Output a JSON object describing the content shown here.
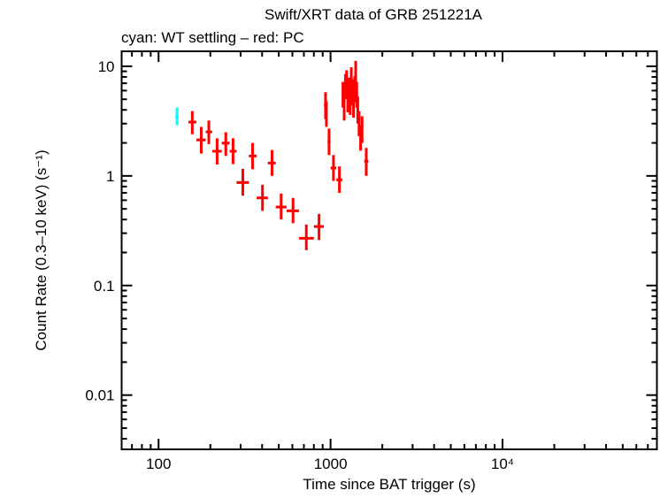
{
  "chart_data": {
    "type": "scatter",
    "title": "Swift/XRT data of GRB 251221A",
    "subtitle": "cyan: WT settling – red: PC",
    "xlabel": "Time since BAT trigger (s)",
    "ylabel": "Count Rate (0.3–10 keV) (s⁻¹)",
    "xscale": "log",
    "yscale": "log",
    "xlim": [
      61,
      79000
    ],
    "ylim": [
      0.0032,
      13.7
    ],
    "grid": false,
    "x_tick_labels": [
      {
        "value": 100,
        "label": "100"
      },
      {
        "value": 1000,
        "label": "1000"
      },
      {
        "value": 10000,
        "label": "10⁴"
      }
    ],
    "y_tick_labels": [
      {
        "value": 0.01,
        "label": "0.01"
      },
      {
        "value": 0.1,
        "label": "0.1"
      },
      {
        "value": 1,
        "label": "1"
      },
      {
        "value": 10,
        "label": "10"
      }
    ],
    "series": [
      {
        "name": "WT settling",
        "color": "#00ffff",
        "points": [
          {
            "t": 128,
            "t_lo": 125,
            "t_hi": 131,
            "rate": 3.5,
            "rate_lo": 2.9,
            "rate_hi": 4.2
          }
        ]
      },
      {
        "name": "PC",
        "color": "#ff0000",
        "points": [
          {
            "t": 157,
            "t_lo": 149,
            "t_hi": 166,
            "rate": 3.1,
            "rate_lo": 2.4,
            "rate_hi": 3.9
          },
          {
            "t": 177,
            "t_lo": 166,
            "t_hi": 188,
            "rate": 2.13,
            "rate_lo": 1.6,
            "rate_hi": 2.8
          },
          {
            "t": 196,
            "t_lo": 188,
            "t_hi": 205,
            "rate": 2.52,
            "rate_lo": 1.95,
            "rate_hi": 3.2
          },
          {
            "t": 219,
            "t_lo": 205,
            "t_hi": 233,
            "rate": 1.68,
            "rate_lo": 1.27,
            "rate_hi": 2.2
          },
          {
            "t": 246,
            "t_lo": 233,
            "t_hi": 259,
            "rate": 1.99,
            "rate_lo": 1.52,
            "rate_hi": 2.5
          },
          {
            "t": 271,
            "t_lo": 259,
            "t_hi": 284,
            "rate": 1.68,
            "rate_lo": 1.28,
            "rate_hi": 2.2
          },
          {
            "t": 309,
            "t_lo": 284,
            "t_hi": 335,
            "rate": 0.87,
            "rate_lo": 0.66,
            "rate_hi": 1.16
          },
          {
            "t": 352,
            "t_lo": 335,
            "t_hi": 372,
            "rate": 1.52,
            "rate_lo": 1.15,
            "rate_hi": 2.0
          },
          {
            "t": 402,
            "t_lo": 372,
            "t_hi": 432,
            "rate": 0.63,
            "rate_lo": 0.48,
            "rate_hi": 0.83
          },
          {
            "t": 457,
            "t_lo": 432,
            "t_hi": 480,
            "rate": 1.31,
            "rate_lo": 1.0,
            "rate_hi": 1.72
          },
          {
            "t": 516,
            "t_lo": 480,
            "t_hi": 555,
            "rate": 0.52,
            "rate_lo": 0.4,
            "rate_hi": 0.69
          },
          {
            "t": 605,
            "t_lo": 555,
            "t_hi": 655,
            "rate": 0.48,
            "rate_lo": 0.37,
            "rate_hi": 0.63
          },
          {
            "t": 723,
            "t_lo": 655,
            "t_hi": 800,
            "rate": 0.27,
            "rate_lo": 0.21,
            "rate_hi": 0.36
          },
          {
            "t": 857,
            "t_lo": 800,
            "t_hi": 915,
            "rate": 0.345,
            "rate_lo": 0.26,
            "rate_hi": 0.45
          },
          {
            "t": 935,
            "t_lo": 915,
            "t_hi": 940,
            "rate": 4.4,
            "rate_lo": 3.3,
            "rate_hi": 5.8
          },
          {
            "t": 946,
            "t_lo": 940,
            "t_hi": 960,
            "rate": 3.76,
            "rate_lo": 2.8,
            "rate_hi": 4.8
          },
          {
            "t": 980,
            "t_lo": 960,
            "t_hi": 1000,
            "rate": 2.05,
            "rate_lo": 1.55,
            "rate_hi": 2.7
          },
          {
            "t": 1040,
            "t_lo": 1000,
            "t_hi": 1080,
            "rate": 1.18,
            "rate_lo": 0.9,
            "rate_hi": 1.55
          },
          {
            "t": 1126,
            "t_lo": 1080,
            "t_hi": 1170,
            "rate": 0.92,
            "rate_lo": 0.7,
            "rate_hi": 1.22
          },
          {
            "t": 1180,
            "t_lo": 1170,
            "t_hi": 1190,
            "rate": 5.5,
            "rate_lo": 4.2,
            "rate_hi": 7.2
          },
          {
            "t": 1200,
            "t_lo": 1190,
            "t_hi": 1210,
            "rate": 4.2,
            "rate_lo": 3.2,
            "rate_hi": 5.5
          },
          {
            "t": 1220,
            "t_lo": 1210,
            "t_hi": 1230,
            "rate": 6.5,
            "rate_lo": 5.0,
            "rate_hi": 8.5
          },
          {
            "t": 1240,
            "t_lo": 1230,
            "t_hi": 1250,
            "rate": 7.0,
            "rate_lo": 5.3,
            "rate_hi": 9.2
          },
          {
            "t": 1260,
            "t_lo": 1250,
            "t_hi": 1270,
            "rate": 5.0,
            "rate_lo": 3.8,
            "rate_hi": 6.6
          },
          {
            "t": 1280,
            "t_lo": 1270,
            "t_hi": 1290,
            "rate": 6.0,
            "rate_lo": 4.6,
            "rate_hi": 7.9
          },
          {
            "t": 1300,
            "t_lo": 1290,
            "t_hi": 1310,
            "rate": 4.8,
            "rate_lo": 3.6,
            "rate_hi": 6.3
          },
          {
            "t": 1320,
            "t_lo": 1310,
            "t_hi": 1330,
            "rate": 7.5,
            "rate_lo": 5.7,
            "rate_hi": 9.8
          },
          {
            "t": 1340,
            "t_lo": 1330,
            "t_hi": 1350,
            "rate": 5.8,
            "rate_lo": 4.4,
            "rate_hi": 7.6
          },
          {
            "t": 1360,
            "t_lo": 1350,
            "t_hi": 1370,
            "rate": 4.5,
            "rate_lo": 3.4,
            "rate_hi": 5.9
          },
          {
            "t": 1380,
            "t_lo": 1370,
            "t_hi": 1390,
            "rate": 6.2,
            "rate_lo": 4.7,
            "rate_hi": 8.1
          },
          {
            "t": 1400,
            "t_lo": 1390,
            "t_hi": 1410,
            "rate": 8.5,
            "rate_lo": 6.5,
            "rate_hi": 11.2
          },
          {
            "t": 1420,
            "t_lo": 1410,
            "t_hi": 1430,
            "rate": 5.5,
            "rate_lo": 4.2,
            "rate_hi": 7.2
          },
          {
            "t": 1440,
            "t_lo": 1430,
            "t_hi": 1450,
            "rate": 4.0,
            "rate_lo": 3.0,
            "rate_hi": 5.3
          },
          {
            "t": 1465,
            "t_lo": 1450,
            "t_hi": 1480,
            "rate": 3.0,
            "rate_lo": 2.3,
            "rate_hi": 3.9
          },
          {
            "t": 1495,
            "t_lo": 1480,
            "t_hi": 1510,
            "rate": 2.2,
            "rate_lo": 1.7,
            "rate_hi": 2.9
          },
          {
            "t": 1525,
            "t_lo": 1510,
            "t_hi": 1540,
            "rate": 2.7,
            "rate_lo": 2.0,
            "rate_hi": 3.5
          },
          {
            "t": 1613,
            "t_lo": 1570,
            "t_hi": 1660,
            "rate": 1.36,
            "rate_lo": 1.0,
            "rate_hi": 1.8
          }
        ]
      }
    ]
  }
}
